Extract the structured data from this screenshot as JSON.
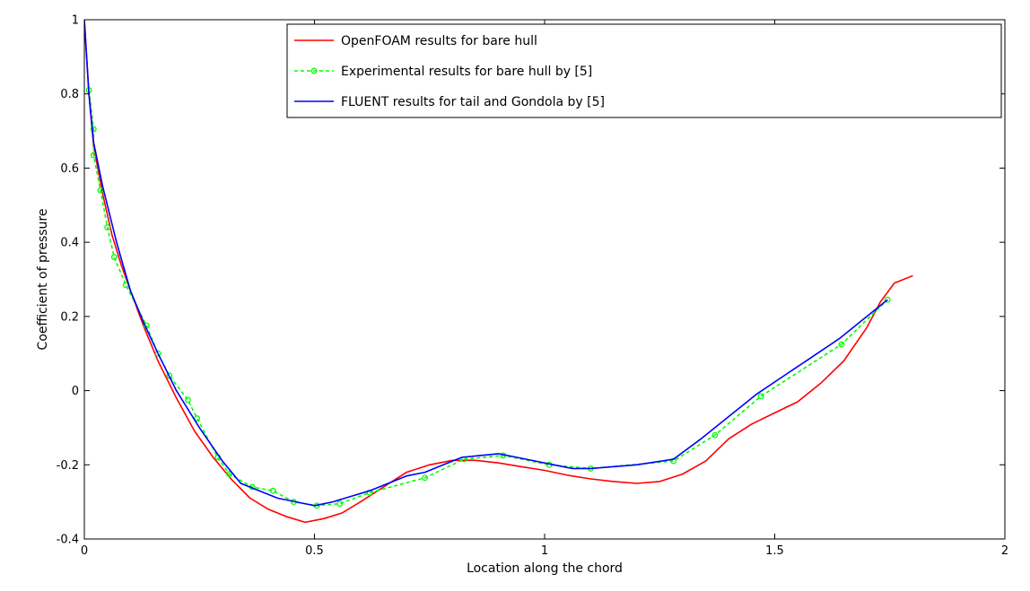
{
  "chart_data": {
    "type": "line",
    "title": "",
    "xlabel": "Location along the chord",
    "ylabel": "Coefficient of pressure",
    "xlim": [
      0,
      2
    ],
    "ylim": [
      -0.4,
      1
    ],
    "xticks": [
      0,
      0.5,
      1,
      1.5,
      2
    ],
    "xtick_labels": [
      "0",
      "0.5",
      "1",
      "1.5",
      "2"
    ],
    "yticks": [
      -0.4,
      -0.2,
      0,
      0.2,
      0.4,
      0.6,
      0.8,
      1
    ],
    "ytick_labels": [
      "-0.4",
      "-0.2",
      "0",
      "0.2",
      "0.4",
      "0.6",
      "0.8",
      "1"
    ],
    "grid": false,
    "legend_position": "top-right",
    "series": [
      {
        "name": "OpenFOAM results for bare hull",
        "color": "#ff0000",
        "style": "solid",
        "marker": "none",
        "x": [
          0,
          0.01,
          0.02,
          0.04,
          0.06,
          0.08,
          0.1,
          0.13,
          0.16,
          0.2,
          0.24,
          0.28,
          0.32,
          0.36,
          0.4,
          0.44,
          0.48,
          0.5,
          0.52,
          0.56,
          0.6,
          0.65,
          0.7,
          0.75,
          0.8,
          0.85,
          0.9,
          0.95,
          1.0,
          1.05,
          1.1,
          1.15,
          1.2,
          1.25,
          1.3,
          1.35,
          1.4,
          1.45,
          1.5,
          1.55,
          1.6,
          1.65,
          1.7,
          1.73,
          1.76,
          1.8
        ],
        "y": [
          1.0,
          0.8,
          0.66,
          0.53,
          0.42,
          0.34,
          0.27,
          0.17,
          0.08,
          -0.02,
          -0.11,
          -0.18,
          -0.24,
          -0.29,
          -0.32,
          -0.34,
          -0.355,
          -0.35,
          -0.345,
          -0.33,
          -0.3,
          -0.26,
          -0.22,
          -0.2,
          -0.188,
          -0.188,
          -0.195,
          -0.205,
          -0.215,
          -0.228,
          -0.238,
          -0.245,
          -0.25,
          -0.245,
          -0.225,
          -0.19,
          -0.13,
          -0.09,
          -0.06,
          -0.03,
          0.02,
          0.08,
          0.17,
          0.24,
          0.29,
          0.31
        ]
      },
      {
        "name": "Experimental results for bare hull by [5]",
        "color": "#00ff00",
        "style": "dashed",
        "marker": "circle",
        "x": [
          0.01,
          0.02,
          0.02,
          0.035,
          0.05,
          0.065,
          0.09,
          0.135,
          0.16,
          0.185,
          0.225,
          0.245,
          0.29,
          0.315,
          0.365,
          0.41,
          0.455,
          0.505,
          0.555,
          0.62,
          0.74,
          0.825,
          0.91,
          1.01,
          1.1,
          1.28,
          1.37,
          1.47,
          1.645,
          1.745
        ],
        "y": [
          0.81,
          0.705,
          0.635,
          0.54,
          0.44,
          0.36,
          0.285,
          0.175,
          0.1,
          0.04,
          -0.025,
          -0.075,
          -0.18,
          -0.225,
          -0.26,
          -0.27,
          -0.3,
          -0.31,
          -0.305,
          -0.275,
          -0.235,
          -0.185,
          -0.175,
          -0.2,
          -0.21,
          -0.19,
          -0.12,
          -0.015,
          0.125,
          0.245
        ]
      },
      {
        "name": "FLUENT results for tail and Gondola by [5]",
        "color": "#0000ff",
        "style": "solid",
        "marker": "none",
        "x": [
          0,
          0.01,
          0.02,
          0.04,
          0.07,
          0.1,
          0.13,
          0.16,
          0.2,
          0.25,
          0.3,
          0.34,
          0.38,
          0.42,
          0.46,
          0.5,
          0.54,
          0.58,
          0.62,
          0.66,
          0.7,
          0.74,
          0.78,
          0.82,
          0.86,
          0.9,
          0.94,
          0.98,
          1.02,
          1.06,
          1.1,
          1.2,
          1.28,
          1.34,
          1.4,
          1.46,
          1.52,
          1.58,
          1.64,
          1.7,
          1.745
        ],
        "y": [
          1.0,
          0.8,
          0.67,
          0.55,
          0.4,
          0.27,
          0.18,
          0.1,
          0.0,
          -0.1,
          -0.19,
          -0.25,
          -0.27,
          -0.29,
          -0.3,
          -0.31,
          -0.3,
          -0.285,
          -0.27,
          -0.25,
          -0.23,
          -0.22,
          -0.2,
          -0.18,
          -0.175,
          -0.17,
          -0.18,
          -0.19,
          -0.2,
          -0.21,
          -0.21,
          -0.2,
          -0.185,
          -0.13,
          -0.07,
          -0.01,
          0.04,
          0.09,
          0.14,
          0.2,
          0.245
        ]
      }
    ]
  }
}
